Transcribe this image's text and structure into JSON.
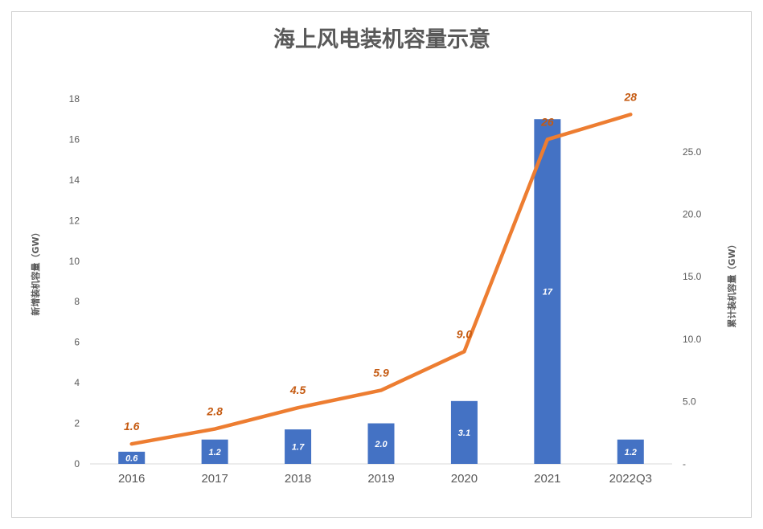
{
  "colors": {
    "bar": "#4472C4",
    "line": "#ED7D31",
    "line_label": "#C55A11",
    "text": "#595959",
    "axis": "#d9d9d9"
  },
  "chart_data": {
    "type": "bar",
    "title": "海上风电装机容量示意",
    "categories": [
      "2016",
      "2017",
      "2018",
      "2019",
      "2020",
      "2021",
      "2022Q3"
    ],
    "series": [
      {
        "name": "",
        "type": "bar",
        "axis": "left",
        "values": [
          0.6,
          1.2,
          1.7,
          2.0,
          3.1,
          17,
          1.2
        ],
        "labels": [
          "0.6",
          "1.2",
          "1.7",
          "2.0",
          "3.1",
          "17",
          "1.2"
        ]
      },
      {
        "name": "",
        "type": "line",
        "axis": "right",
        "values": [
          1.6,
          2.8,
          4.5,
          5.9,
          9.0,
          26,
          28
        ],
        "labels": [
          "1.6",
          "2.8",
          "4.5",
          "5.9",
          "9.0",
          "26",
          "28"
        ]
      }
    ],
    "ylabel": "新增装机容量（GW）",
    "y2label": "累计装机容量（GW）",
    "ylim": [
      0,
      18
    ],
    "y2lim": [
      0,
      29.25
    ],
    "yticks": [
      "0",
      "2",
      "4",
      "6",
      "8",
      "10",
      "12",
      "14",
      "16",
      "18"
    ],
    "y2ticks": [
      "-",
      "5.0",
      "10.0",
      "15.0",
      "20.0",
      "25.0"
    ],
    "grid": false,
    "legend": "none"
  }
}
